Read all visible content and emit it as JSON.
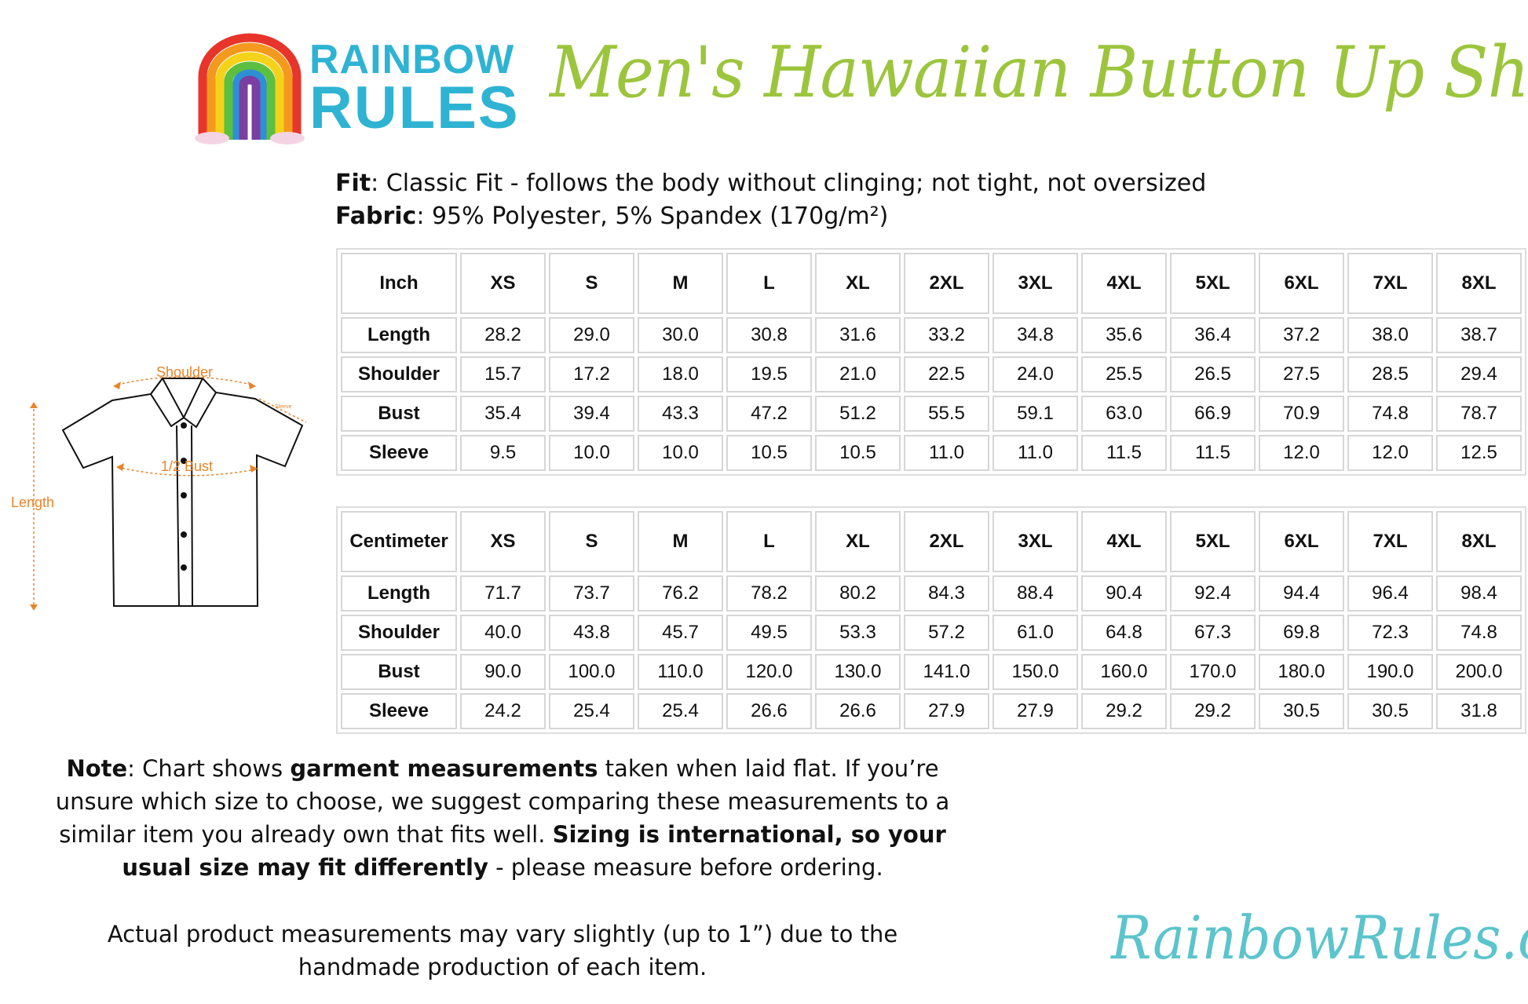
{
  "brand": {
    "logo_line1": "RAINBOW",
    "logo_line2": "RULES",
    "site": "RainbowRules.com",
    "title_color": "#9cc53d",
    "site_color": "#5bc4cc",
    "logo_text_color": "#2fb3d3"
  },
  "title": "Men's Hawaiian Button Up Shirt",
  "fit": {
    "label": "Fit",
    "text": ": Classic Fit - follows the body without clinging; not tight, not oversized"
  },
  "fabric": {
    "label": "Fabric",
    "text": ": 95% Polyester, 5% Spandex (170g/m²)"
  },
  "diagram": {
    "shoulder": "Shoulder",
    "sleeve": "Sleeve",
    "bust": "1/2 Bust",
    "length": "Length",
    "accent": "#e8852a"
  },
  "sizes": [
    "XS",
    "S",
    "M",
    "L",
    "XL",
    "2XL",
    "3XL",
    "4XL",
    "5XL",
    "6XL",
    "7XL",
    "8XL"
  ],
  "inch_table": {
    "unit": "Inch",
    "rows": [
      {
        "label": "Length",
        "values": [
          "28.2",
          "29.0",
          "30.0",
          "30.8",
          "31.6",
          "33.2",
          "34.8",
          "35.6",
          "36.4",
          "37.2",
          "38.0",
          "38.7"
        ]
      },
      {
        "label": "Shoulder",
        "values": [
          "15.7",
          "17.2",
          "18.0",
          "19.5",
          "21.0",
          "22.5",
          "24.0",
          "25.5",
          "26.5",
          "27.5",
          "28.5",
          "29.4"
        ]
      },
      {
        "label": "Bust",
        "values": [
          "35.4",
          "39.4",
          "43.3",
          "47.2",
          "51.2",
          "55.5",
          "59.1",
          "63.0",
          "66.9",
          "70.9",
          "74.8",
          "78.7"
        ]
      },
      {
        "label": "Sleeve",
        "values": [
          "9.5",
          "10.0",
          "10.0",
          "10.5",
          "10.5",
          "11.0",
          "11.0",
          "11.5",
          "11.5",
          "12.0",
          "12.0",
          "12.5"
        ]
      }
    ]
  },
  "cm_table": {
    "unit": "Centimeter",
    "rows": [
      {
        "label": "Length",
        "values": [
          "71.7",
          "73.7",
          "76.2",
          "78.2",
          "80.2",
          "84.3",
          "88.4",
          "90.4",
          "92.4",
          "94.4",
          "96.4",
          "98.4"
        ]
      },
      {
        "label": "Shoulder",
        "values": [
          "40.0",
          "43.8",
          "45.7",
          "49.5",
          "53.3",
          "57.2",
          "61.0",
          "64.8",
          "67.3",
          "69.8",
          "72.3",
          "74.8"
        ]
      },
      {
        "label": "Bust",
        "values": [
          "90.0",
          "100.0",
          "110.0",
          "120.0",
          "130.0",
          "141.0",
          "150.0",
          "160.0",
          "170.0",
          "180.0",
          "190.0",
          "200.0"
        ]
      },
      {
        "label": "Sleeve",
        "values": [
          "24.2",
          "25.4",
          "25.4",
          "26.6",
          "26.6",
          "27.9",
          "27.9",
          "29.2",
          "29.2",
          "30.5",
          "30.5",
          "31.8"
        ]
      }
    ]
  },
  "note": {
    "label": "Note",
    "p1": ": Chart shows ",
    "b1": "garment measurements",
    "p2": " taken when laid flat. If you’re unsure which size to choose, we suggest comparing these measurements to a similar item you already own that fits well. ",
    "b2": "Sizing is international, so your usual size may fit differently",
    "p3": " - please measure before ordering.",
    "disclaimer": "Actual product measurements may vary slightly (up to 1”) due to the handmade production of each item."
  }
}
